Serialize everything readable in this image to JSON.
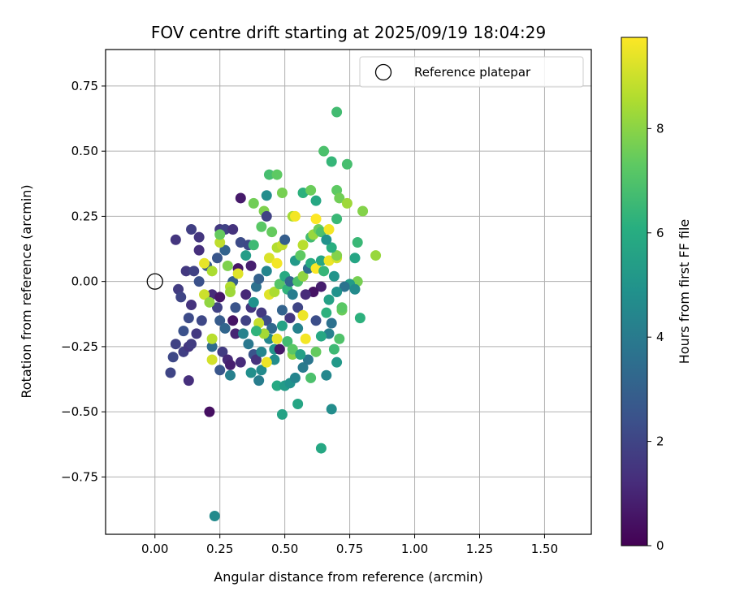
{
  "chart_data": {
    "type": "scatter",
    "title": "FOV centre drift starting at 2025/09/19 18:04:29",
    "xlabel": "Angular distance from reference (arcmin)",
    "ylabel": "Rotation from reference (arcmin)",
    "xlim": [
      -0.19,
      1.68
    ],
    "ylim": [
      -0.97,
      0.89
    ],
    "xticks": [
      0.0,
      0.25,
      0.5,
      0.75,
      1.0,
      1.25,
      1.5
    ],
    "xtick_labels": [
      "0.00",
      "0.25",
      "0.50",
      "0.75",
      "1.00",
      "1.25",
      "1.50"
    ],
    "yticks": [
      -0.75,
      -0.5,
      -0.25,
      0.0,
      0.25,
      0.5,
      0.75
    ],
    "ytick_labels": [
      "−0.75",
      "−0.50",
      "−0.25",
      "0.00",
      "0.25",
      "0.50",
      "0.75"
    ],
    "grid": true,
    "colormap": "viridis",
    "colorbar": {
      "label": "Hours from first FF file",
      "range": [
        0,
        9.75
      ],
      "ticks": [
        0,
        2,
        4,
        6,
        8
      ],
      "tick_labels": [
        "0",
        "2",
        "4",
        "6",
        "8"
      ]
    },
    "legend": {
      "position": "top-right",
      "entries": [
        {
          "label": "Reference platepar",
          "marker": "open-circle"
        }
      ]
    },
    "reference_point": {
      "x": 0.0,
      "y": 0.0
    },
    "points": [
      {
        "x": 0.08,
        "y": 0.16,
        "h": 1.5
      },
      {
        "x": 0.14,
        "y": 0.2,
        "h": 1.8
      },
      {
        "x": 0.17,
        "y": 0.17,
        "h": 1.5
      },
      {
        "x": 0.17,
        "y": 0.12,
        "h": 1.3
      },
      {
        "x": 0.12,
        "y": 0.04,
        "h": 1.6
      },
      {
        "x": 0.15,
        "y": 0.04,
        "h": 1.9
      },
      {
        "x": 0.09,
        "y": -0.03,
        "h": 1.7
      },
      {
        "x": 0.1,
        "y": -0.06,
        "h": 2.0
      },
      {
        "x": 0.14,
        "y": -0.09,
        "h": 1.4
      },
      {
        "x": 0.13,
        "y": -0.14,
        "h": 2.2
      },
      {
        "x": 0.16,
        "y": -0.2,
        "h": 1.6
      },
      {
        "x": 0.11,
        "y": -0.19,
        "h": 2.4
      },
      {
        "x": 0.08,
        "y": -0.24,
        "h": 1.9
      },
      {
        "x": 0.07,
        "y": -0.29,
        "h": 2.1
      },
      {
        "x": 0.11,
        "y": -0.27,
        "h": 1.8
      },
      {
        "x": 0.13,
        "y": -0.25,
        "h": 1.5
      },
      {
        "x": 0.14,
        "y": -0.24,
        "h": 1.7
      },
      {
        "x": 0.06,
        "y": -0.35,
        "h": 2.0
      },
      {
        "x": 0.13,
        "y": -0.38,
        "h": 1.3
      },
      {
        "x": 0.21,
        "y": -0.5,
        "h": 0.4
      },
      {
        "x": 0.23,
        "y": -0.9,
        "h": 4.6
      },
      {
        "x": 0.25,
        "y": 0.2,
        "h": 1.6
      },
      {
        "x": 0.27,
        "y": 0.2,
        "h": 1.9
      },
      {
        "x": 0.3,
        "y": 0.2,
        "h": 1.4
      },
      {
        "x": 0.33,
        "y": 0.32,
        "h": 0.7
      },
      {
        "x": 0.27,
        "y": 0.12,
        "h": 3.1
      },
      {
        "x": 0.33,
        "y": 0.15,
        "h": 2.2
      },
      {
        "x": 0.24,
        "y": 0.09,
        "h": 2.6
      },
      {
        "x": 0.2,
        "y": 0.06,
        "h": 2.8
      },
      {
        "x": 0.17,
        "y": 0.0,
        "h": 2.4
      },
      {
        "x": 0.22,
        "y": -0.05,
        "h": 1.2
      },
      {
        "x": 0.25,
        "y": -0.06,
        "h": 0.6
      },
      {
        "x": 0.24,
        "y": -0.1,
        "h": 1.9
      },
      {
        "x": 0.18,
        "y": -0.15,
        "h": 2.1
      },
      {
        "x": 0.25,
        "y": -0.15,
        "h": 2.8
      },
      {
        "x": 0.27,
        "y": -0.18,
        "h": 3.2
      },
      {
        "x": 0.3,
        "y": -0.15,
        "h": 0.5
      },
      {
        "x": 0.31,
        "y": -0.2,
        "h": 1.0
      },
      {
        "x": 0.22,
        "y": -0.25,
        "h": 3.4
      },
      {
        "x": 0.26,
        "y": -0.27,
        "h": 1.7
      },
      {
        "x": 0.28,
        "y": -0.3,
        "h": 1.1
      },
      {
        "x": 0.29,
        "y": -0.32,
        "h": 0.8
      },
      {
        "x": 0.33,
        "y": -0.31,
        "h": 1.2
      },
      {
        "x": 0.25,
        "y": -0.34,
        "h": 2.6
      },
      {
        "x": 0.29,
        "y": -0.36,
        "h": 4.2
      },
      {
        "x": 0.32,
        "y": 0.05,
        "h": 0.6
      },
      {
        "x": 0.3,
        "y": 0.0,
        "h": 2.9
      },
      {
        "x": 0.35,
        "y": -0.05,
        "h": 1.1
      },
      {
        "x": 0.37,
        "y": -0.1,
        "h": 1.5
      },
      {
        "x": 0.35,
        "y": -0.15,
        "h": 1.9
      },
      {
        "x": 0.34,
        "y": -0.2,
        "h": 4.3
      },
      {
        "x": 0.36,
        "y": -0.24,
        "h": 3.9
      },
      {
        "x": 0.38,
        "y": -0.28,
        "h": 2.5
      },
      {
        "x": 0.39,
        "y": -0.3,
        "h": 1.4
      },
      {
        "x": 0.37,
        "y": -0.35,
        "h": 4.8
      },
      {
        "x": 0.4,
        "y": -0.38,
        "h": 4.1
      },
      {
        "x": 0.41,
        "y": -0.34,
        "h": 4.6
      },
      {
        "x": 0.38,
        "y": -0.08,
        "h": 4.9
      },
      {
        "x": 0.39,
        "y": -0.02,
        "h": 3.6
      },
      {
        "x": 0.4,
        "y": 0.01,
        "h": 3.0
      },
      {
        "x": 0.43,
        "y": 0.04,
        "h": 4.4
      },
      {
        "x": 0.41,
        "y": -0.12,
        "h": 1.6
      },
      {
        "x": 0.43,
        "y": -0.15,
        "h": 2.3
      },
      {
        "x": 0.45,
        "y": -0.18,
        "h": 3.3
      },
      {
        "x": 0.44,
        "y": -0.22,
        "h": 4.5
      },
      {
        "x": 0.46,
        "y": -0.26,
        "h": 5.0
      },
      {
        "x": 0.46,
        "y": -0.3,
        "h": 4.7
      },
      {
        "x": 0.47,
        "y": -0.4,
        "h": 5.9
      },
      {
        "x": 0.49,
        "y": -0.51,
        "h": 5.6
      },
      {
        "x": 0.5,
        "y": -0.4,
        "h": 5.3
      },
      {
        "x": 0.52,
        "y": -0.39,
        "h": 4.9
      },
      {
        "x": 0.54,
        "y": -0.37,
        "h": 4.4
      },
      {
        "x": 0.55,
        "y": -0.47,
        "h": 5.7
      },
      {
        "x": 0.57,
        "y": -0.33,
        "h": 4.0
      },
      {
        "x": 0.59,
        "y": -0.3,
        "h": 3.8
      },
      {
        "x": 0.6,
        "y": -0.37,
        "h": 6.9
      },
      {
        "x": 0.62,
        "y": -0.27,
        "h": 7.4
      },
      {
        "x": 0.64,
        "y": -0.64,
        "h": 5.8
      },
      {
        "x": 0.66,
        "y": -0.36,
        "h": 4.5
      },
      {
        "x": 0.68,
        "y": -0.49,
        "h": 4.7
      },
      {
        "x": 0.67,
        "y": -0.2,
        "h": 4.2
      },
      {
        "x": 0.7,
        "y": -0.31,
        "h": 5.2
      },
      {
        "x": 0.69,
        "y": -0.26,
        "h": 6.6
      },
      {
        "x": 0.71,
        "y": -0.22,
        "h": 7.0
      },
      {
        "x": 0.72,
        "y": -0.11,
        "h": 7.5
      },
      {
        "x": 0.79,
        "y": -0.14,
        "h": 6.2
      },
      {
        "x": 0.36,
        "y": 0.14,
        "h": 2.1
      },
      {
        "x": 0.38,
        "y": 0.14,
        "h": 6.6
      },
      {
        "x": 0.38,
        "y": 0.3,
        "h": 7.6
      },
      {
        "x": 0.41,
        "y": 0.21,
        "h": 7.2
      },
      {
        "x": 0.42,
        "y": 0.27,
        "h": 7.8
      },
      {
        "x": 0.43,
        "y": 0.25,
        "h": 1.9
      },
      {
        "x": 0.43,
        "y": 0.33,
        "h": 4.7
      },
      {
        "x": 0.44,
        "y": 0.41,
        "h": 6.8
      },
      {
        "x": 0.47,
        "y": 0.41,
        "h": 7.3
      },
      {
        "x": 0.49,
        "y": 0.34,
        "h": 7.7
      },
      {
        "x": 0.45,
        "y": 0.19,
        "h": 7.4
      },
      {
        "x": 0.47,
        "y": 0.13,
        "h": 8.6
      },
      {
        "x": 0.49,
        "y": 0.14,
        "h": 8.9
      },
      {
        "x": 0.5,
        "y": 0.16,
        "h": 2.9
      },
      {
        "x": 0.44,
        "y": 0.09,
        "h": 9.2
      },
      {
        "x": 0.47,
        "y": 0.07,
        "h": 9.6
      },
      {
        "x": 0.44,
        "y": -0.05,
        "h": 9.3
      },
      {
        "x": 0.46,
        "y": -0.04,
        "h": 8.5
      },
      {
        "x": 0.48,
        "y": -0.01,
        "h": 7.1
      },
      {
        "x": 0.5,
        "y": 0.02,
        "h": 5.9
      },
      {
        "x": 0.51,
        "y": -0.03,
        "h": 6.3
      },
      {
        "x": 0.52,
        "y": 0.0,
        "h": 3.2
      },
      {
        "x": 0.53,
        "y": -0.05,
        "h": 4.1
      },
      {
        "x": 0.55,
        "y": 0.0,
        "h": 6.9
      },
      {
        "x": 0.57,
        "y": 0.02,
        "h": 8.1
      },
      {
        "x": 0.59,
        "y": 0.05,
        "h": 3.5
      },
      {
        "x": 0.6,
        "y": 0.07,
        "h": 6.0
      },
      {
        "x": 0.62,
        "y": 0.05,
        "h": 9.7
      },
      {
        "x": 0.64,
        "y": 0.08,
        "h": 5.7
      },
      {
        "x": 0.65,
        "y": 0.04,
        "h": 6.4
      },
      {
        "x": 0.67,
        "y": 0.08,
        "h": 9.5
      },
      {
        "x": 0.7,
        "y": 0.09,
        "h": 9.1
      },
      {
        "x": 0.7,
        "y": 0.1,
        "h": 7.9
      },
      {
        "x": 0.68,
        "y": 0.13,
        "h": 6.1
      },
      {
        "x": 0.54,
        "y": 0.08,
        "h": 5.2
      },
      {
        "x": 0.56,
        "y": 0.1,
        "h": 7.3
      },
      {
        "x": 0.57,
        "y": 0.14,
        "h": 8.7
      },
      {
        "x": 0.6,
        "y": 0.17,
        "h": 6.7
      },
      {
        "x": 0.61,
        "y": 0.18,
        "h": 8.2
      },
      {
        "x": 0.63,
        "y": 0.2,
        "h": 7.5
      },
      {
        "x": 0.64,
        "y": 0.19,
        "h": 6.9
      },
      {
        "x": 0.66,
        "y": 0.16,
        "h": 4.9
      },
      {
        "x": 0.67,
        "y": 0.2,
        "h": 9.6
      },
      {
        "x": 0.7,
        "y": 0.24,
        "h": 6.5
      },
      {
        "x": 0.53,
        "y": 0.25,
        "h": 8.4
      },
      {
        "x": 0.54,
        "y": 0.25,
        "h": 9.6
      },
      {
        "x": 0.57,
        "y": 0.34,
        "h": 6.2
      },
      {
        "x": 0.6,
        "y": 0.35,
        "h": 7.5
      },
      {
        "x": 0.62,
        "y": 0.31,
        "h": 5.8
      },
      {
        "x": 0.62,
        "y": 0.24,
        "h": 9.8
      },
      {
        "x": 0.65,
        "y": 0.5,
        "h": 6.9
      },
      {
        "x": 0.68,
        "y": 0.46,
        "h": 6.4
      },
      {
        "x": 0.7,
        "y": 0.35,
        "h": 7.3
      },
      {
        "x": 0.71,
        "y": 0.32,
        "h": 7.6
      },
      {
        "x": 0.74,
        "y": 0.3,
        "h": 8.3
      },
      {
        "x": 0.74,
        "y": 0.45,
        "h": 6.8
      },
      {
        "x": 0.7,
        "y": 0.65,
        "h": 6.7
      },
      {
        "x": 0.8,
        "y": 0.27,
        "h": 7.9
      },
      {
        "x": 0.78,
        "y": 0.15,
        "h": 6.5
      },
      {
        "x": 0.77,
        "y": 0.09,
        "h": 5.7
      },
      {
        "x": 0.78,
        "y": 0.0,
        "h": 7.7
      },
      {
        "x": 0.85,
        "y": 0.1,
        "h": 8.2
      },
      {
        "x": 0.75,
        "y": -0.01,
        "h": 5.3
      },
      {
        "x": 0.77,
        "y": -0.03,
        "h": 4.6
      },
      {
        "x": 0.73,
        "y": -0.02,
        "h": 3.7
      },
      {
        "x": 0.7,
        "y": -0.04,
        "h": 4.9
      },
      {
        "x": 0.67,
        "y": -0.07,
        "h": 5.5
      },
      {
        "x": 0.69,
        "y": 0.02,
        "h": 5.0
      },
      {
        "x": 0.72,
        "y": -0.1,
        "h": 7.2
      },
      {
        "x": 0.66,
        "y": -0.12,
        "h": 6.2
      },
      {
        "x": 0.68,
        "y": -0.16,
        "h": 3.6
      },
      {
        "x": 0.64,
        "y": -0.02,
        "h": 0.8
      },
      {
        "x": 0.61,
        "y": -0.04,
        "h": 0.5
      },
      {
        "x": 0.58,
        "y": -0.05,
        "h": 1.2
      },
      {
        "x": 0.55,
        "y": -0.1,
        "h": 2.0
      },
      {
        "x": 0.57,
        "y": -0.13,
        "h": 9.5
      },
      {
        "x": 0.58,
        "y": -0.22,
        "h": 9.6
      },
      {
        "x": 0.55,
        "y": -0.18,
        "h": 4.3
      },
      {
        "x": 0.52,
        "y": -0.14,
        "h": 1.5
      },
      {
        "x": 0.49,
        "y": -0.11,
        "h": 3.1
      },
      {
        "x": 0.49,
        "y": -0.17,
        "h": 5.6
      },
      {
        "x": 0.51,
        "y": -0.23,
        "h": 6.7
      },
      {
        "x": 0.53,
        "y": -0.28,
        "h": 8.0
      },
      {
        "x": 0.53,
        "y": -0.26,
        "h": 7.2
      },
      {
        "x": 0.56,
        "y": -0.28,
        "h": 5.5
      },
      {
        "x": 0.62,
        "y": -0.15,
        "h": 2.3
      },
      {
        "x": 0.64,
        "y": -0.21,
        "h": 5.8
      },
      {
        "x": 0.41,
        "y": -0.27,
        "h": 4.4
      },
      {
        "x": 0.43,
        "y": -0.31,
        "h": 9.5
      },
      {
        "x": 0.42,
        "y": -0.2,
        "h": 8.4
      },
      {
        "x": 0.4,
        "y": -0.16,
        "h": 8.9
      },
      {
        "x": 0.39,
        "y": -0.19,
        "h": 6.3
      },
      {
        "x": 0.47,
        "y": -0.22,
        "h": 9.4
      },
      {
        "x": 0.48,
        "y": -0.26,
        "h": 0.6
      },
      {
        "x": 0.37,
        "y": 0.06,
        "h": 0.8
      },
      {
        "x": 0.35,
        "y": 0.1,
        "h": 5.4
      },
      {
        "x": 0.32,
        "y": 0.03,
        "h": 9.3
      },
      {
        "x": 0.29,
        "y": -0.02,
        "h": 8.6
      },
      {
        "x": 0.28,
        "y": 0.06,
        "h": 7.8
      },
      {
        "x": 0.25,
        "y": 0.15,
        "h": 8.8
      },
      {
        "x": 0.25,
        "y": 0.18,
        "h": 7.4
      },
      {
        "x": 0.22,
        "y": 0.04,
        "h": 8.5
      },
      {
        "x": 0.19,
        "y": 0.07,
        "h": 9.4
      },
      {
        "x": 0.19,
        "y": -0.05,
        "h": 9.0
      },
      {
        "x": 0.21,
        "y": -0.08,
        "h": 8.1
      },
      {
        "x": 0.22,
        "y": -0.22,
        "h": 8.7
      },
      {
        "x": 0.22,
        "y": -0.3,
        "h": 9.1
      },
      {
        "x": 0.29,
        "y": -0.04,
        "h": 8.3
      },
      {
        "x": 0.31,
        "y": -0.1,
        "h": 2.5
      }
    ]
  }
}
